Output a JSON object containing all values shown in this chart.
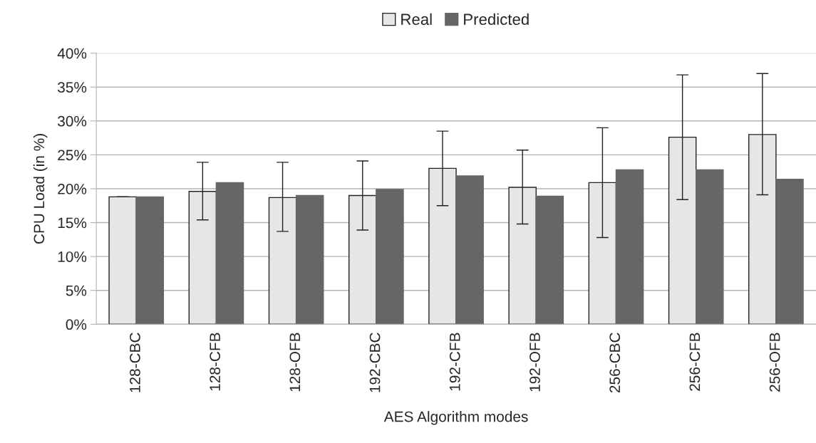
{
  "chart_data": {
    "type": "bar",
    "xlabel": "AES Algorithm modes",
    "ylabel": "CPU Load (in %)",
    "categories": [
      "128-CBC",
      "128-CFB",
      "128-OFB",
      "192-CBC",
      "192-CFB",
      "192-OFB",
      "256-CBC",
      "256-CFB",
      "256-OFB"
    ],
    "series": [
      {
        "name": "Real",
        "color": "#e6e6e6",
        "values": [
          18.8,
          19.6,
          18.7,
          19.0,
          23.0,
          20.2,
          20.9,
          27.6,
          28.0
        ],
        "errors": [
          0,
          [
            15.4,
            23.9
          ],
          [
            13.7,
            23.9
          ],
          [
            13.9,
            24.1
          ],
          [
            17.5,
            28.5
          ],
          [
            14.8,
            25.7
          ],
          [
            12.8,
            29.0
          ],
          [
            18.4,
            36.8
          ],
          [
            19.1,
            37.0
          ]
        ]
      },
      {
        "name": "Predicted",
        "color": "#666666",
        "values": [
          18.8,
          20.9,
          19.0,
          19.9,
          21.9,
          18.9,
          22.8,
          22.8,
          21.4
        ]
      }
    ],
    "ylim": [
      0,
      40
    ],
    "yticks": [
      {
        "value": 0,
        "label": "0%"
      },
      {
        "value": 5,
        "label": "5%"
      },
      {
        "value": 10,
        "label": "10%"
      },
      {
        "value": 15,
        "label": "15%"
      },
      {
        "value": 20,
        "label": "20%"
      },
      {
        "value": 25,
        "label": "25%"
      },
      {
        "value": 30,
        "label": "30%"
      },
      {
        "value": 35,
        "label": "35%"
      },
      {
        "value": 40,
        "label": "40%"
      }
    ],
    "grid": "y",
    "legend": "top"
  }
}
